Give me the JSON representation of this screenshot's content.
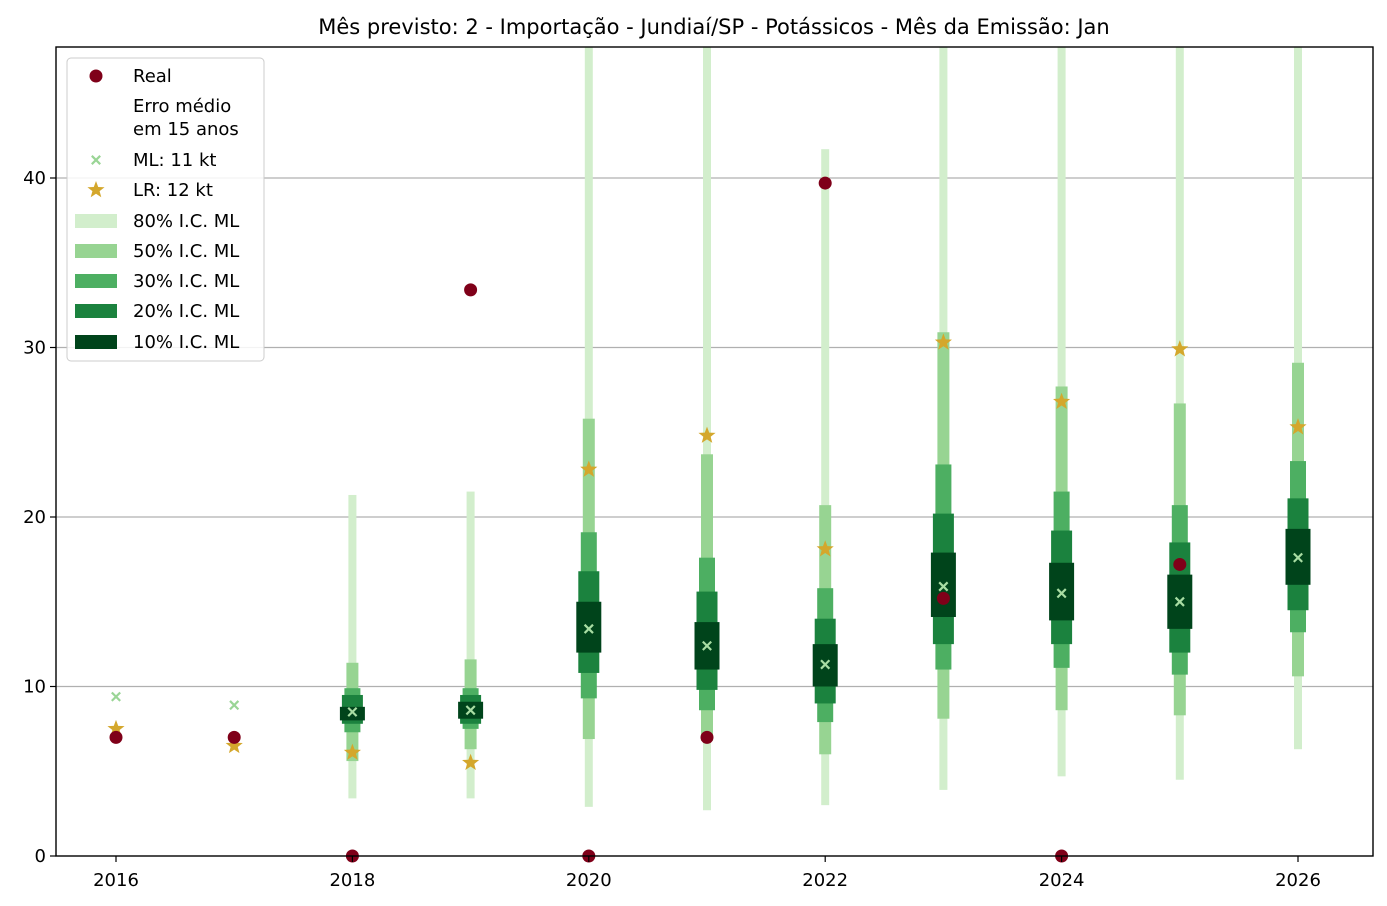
{
  "chart_data": {
    "type": "interval",
    "title": "Mês previsto: 2 - Importação - Jundiaí/SP - Potássicos - Mês da Emissão: Jan",
    "xlabel": "",
    "ylabel": "",
    "xlim": [
      2015.5,
      2026.6
    ],
    "ylim": [
      0,
      47.7
    ],
    "x_ticks": [
      2016,
      2018,
      2020,
      2022,
      2024,
      2026
    ],
    "y_ticks": [
      0,
      10,
      20,
      30,
      40
    ],
    "grid": "horizontal",
    "legend_position": "top-left",
    "colors": {
      "real": "#7f0019",
      "ml": "#9ad596",
      "lr": "#d4a72c",
      "ic80": "#d2eecc",
      "ic50": "#97d492",
      "ic30": "#4daf62",
      "ic20": "#1b823e",
      "ic10": "#00441b"
    },
    "legend": [
      {
        "key": "real",
        "label": "Real"
      },
      {
        "key": "erro",
        "label": "Erro médio em 15 anos",
        "lines": [
          "Erro médio",
          "em 15 anos"
        ]
      },
      {
        "key": "ml",
        "label": "ML: 11 kt"
      },
      {
        "key": "lr",
        "label": "LR: 12 kt"
      },
      {
        "key": "ic80",
        "label": "80% I.C. ML"
      },
      {
        "key": "ic50",
        "label": "50% I.C. ML"
      },
      {
        "key": "ic30",
        "label": "30% I.C. ML"
      },
      {
        "key": "ic20",
        "label": "20% I.C. ML"
      },
      {
        "key": "ic10",
        "label": "10% I.C. ML"
      }
    ],
    "years": [
      2016,
      2017,
      2018,
      2019,
      2020,
      2021,
      2022,
      2023,
      2024,
      2025,
      2026
    ],
    "real": [
      7.0,
      7.0,
      0.0,
      33.4,
      0.0,
      7.0,
      39.7,
      15.2,
      0.0,
      17.2,
      null
    ],
    "ml": [
      9.4,
      8.9,
      8.5,
      8.6,
      13.4,
      12.4,
      11.3,
      15.9,
      15.5,
      15.0,
      17.6
    ],
    "lr": [
      7.5,
      6.5,
      6.1,
      5.5,
      22.8,
      24.8,
      18.1,
      30.3,
      26.8,
      29.9,
      25.3
    ],
    "intervals": {
      "ic80": [
        null,
        null,
        [
          3.4,
          21.3
        ],
        [
          3.4,
          21.5
        ],
        [
          2.9,
          47.7
        ],
        [
          2.7,
          47.7
        ],
        [
          3.0,
          41.7
        ],
        [
          3.9,
          47.7
        ],
        [
          4.7,
          47.7
        ],
        [
          4.5,
          47.7
        ],
        [
          6.3,
          47.7
        ]
      ],
      "ic50": [
        null,
        null,
        [
          5.6,
          11.4
        ],
        [
          6.3,
          11.6
        ],
        [
          6.9,
          25.8
        ],
        [
          6.8,
          23.7
        ],
        [
          6.0,
          20.7
        ],
        [
          8.1,
          30.9
        ],
        [
          8.6,
          27.7
        ],
        [
          8.3,
          26.7
        ],
        [
          10.6,
          29.1
        ]
      ],
      "ic30": [
        null,
        null,
        [
          7.3,
          9.9
        ],
        [
          7.5,
          9.9
        ],
        [
          9.3,
          19.1
        ],
        [
          8.6,
          17.6
        ],
        [
          7.9,
          15.8
        ],
        [
          11.0,
          23.1
        ],
        [
          11.1,
          21.5
        ],
        [
          10.7,
          20.7
        ],
        [
          13.2,
          23.3
        ]
      ],
      "ic20": [
        null,
        null,
        [
          7.8,
          9.5
        ],
        [
          7.8,
          9.5
        ],
        [
          10.8,
          16.8
        ],
        [
          9.8,
          15.6
        ],
        [
          9.0,
          14.0
        ],
        [
          12.5,
          20.2
        ],
        [
          12.5,
          19.2
        ],
        [
          12.0,
          18.5
        ],
        [
          14.5,
          21.1
        ]
      ],
      "ic10": [
        null,
        null,
        [
          8.0,
          8.8
        ],
        [
          8.1,
          9.1
        ],
        [
          12.0,
          15.0
        ],
        [
          11.0,
          13.8
        ],
        [
          10.0,
          12.5
        ],
        [
          14.1,
          17.9
        ],
        [
          13.9,
          17.3
        ],
        [
          13.4,
          16.6
        ],
        [
          16.0,
          19.3
        ]
      ]
    }
  }
}
